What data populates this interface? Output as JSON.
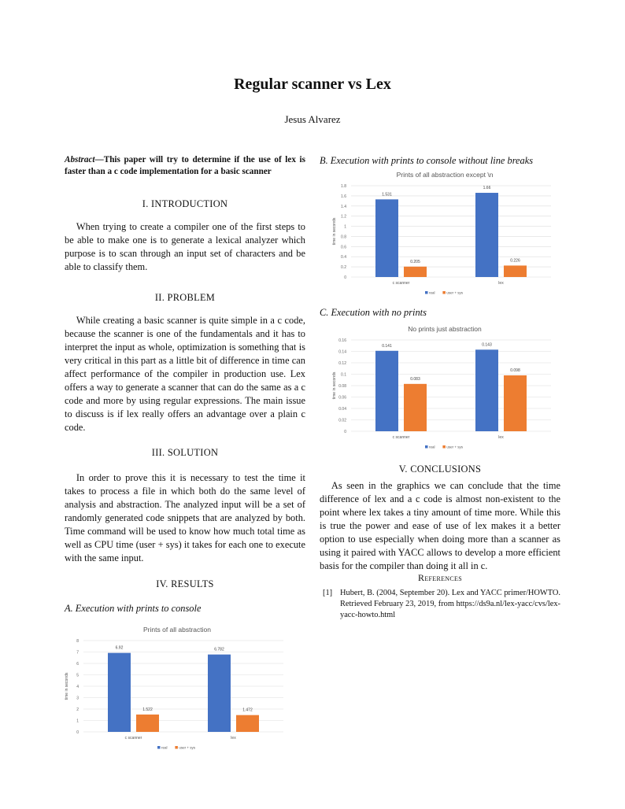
{
  "title": "Regular scanner vs Lex",
  "author": "Jesus Alvarez",
  "abstract": {
    "label": "Abstract",
    "dash": "—",
    "text": "This paper will try to determine if the use of lex is faster than a c code implementation for a basic scanner"
  },
  "sections": {
    "intro": {
      "heading": "I. INTRODUCTION",
      "text": "When trying to create a compiler one of the first steps to be able to make one is to generate a lexical analyzer which purpose is to scan through an input set of characters and be able to classify them."
    },
    "problem": {
      "heading": "II. PROBLEM",
      "text": "While creating a basic scanner is quite simple in a c code, because the scanner is one of the fundamentals and it has to interpret the input as whole, optimization is something that is very critical in this part as a little bit of difference in time can affect performance of the compiler in production use. Lex offers a way to generate a scanner that can do the same as a c code and more by using regular expressions. The main issue to discuss is if lex really offers an advantage over a plain c code."
    },
    "solution": {
      "heading": "III. SOLUTION",
      "text": "In order to prove this it is necessary to test the time it takes to process a file in which both do the same level of analysis and abstraction. The analyzed input will be a set of randomly generated code snippets that are analyzed by both. Time command will be used to know how much total time as well as CPU time (user + sys) it takes for each one to execute with the same input."
    },
    "results": {
      "heading": "IV. RESULTS",
      "sub_a": "A. Execution with prints to console",
      "sub_b": "B. Execution with prints to console without line breaks",
      "sub_c": "C. Execution with no prints"
    },
    "conclusions": {
      "heading": "V. CONCLUSIONS",
      "text": "As seen in the graphics we can conclude that the time difference of lex and a c code is almost non-existent to the point where lex takes a tiny amount of time more. While this is true the power and ease of use of lex makes it a better option to use especially when doing more than a scanner as using it paired with YACC allows to develop a more efficient basis for the compiler than doing it all in c."
    },
    "references": {
      "heading": "References",
      "items": [
        {
          "num": "[1]",
          "text": "Hubert, B. (2004, September 20). Lex and YACC primer/HOWTO. Retrieved February 23, 2019, from https://ds9a.nl/lex-yacc/cvs/lex-yacc-howto.html"
        }
      ]
    }
  },
  "chart_data": [
    {
      "type": "bar",
      "title": "Prints of all abstraction",
      "ylabel": "time in seconds",
      "xlabel": "",
      "categories": [
        "c scanner",
        "lex"
      ],
      "ylim": [
        0,
        8
      ],
      "yticks": [
        0,
        1,
        2,
        3,
        4,
        5,
        6,
        7,
        8
      ],
      "grid": true,
      "legend": "bottom",
      "series": [
        {
          "name": "real",
          "color": "#4472c4",
          "values": [
            6.92,
            6.782
          ],
          "labels": [
            "6.92",
            "6.782"
          ]
        },
        {
          "name": "user + sys",
          "color": "#ed7d31",
          "values": [
            1.522,
            1.472
          ],
          "labels": [
            "1.522",
            "1.472"
          ]
        }
      ]
    },
    {
      "type": "bar",
      "title": "Prints of all abstraction except \\n",
      "ylabel": "time in seconds",
      "xlabel": "",
      "categories": [
        "c scanner",
        "lex"
      ],
      "ylim": [
        0,
        1.8
      ],
      "yticks": [
        0,
        0.2,
        0.4,
        0.6,
        0.8,
        1,
        1.2,
        1.4,
        1.6,
        1.8
      ],
      "grid": true,
      "legend": "bottom",
      "series": [
        {
          "name": "real",
          "color": "#4472c4",
          "values": [
            1.531,
            1.66
          ],
          "labels": [
            "1.531",
            "1.66"
          ]
        },
        {
          "name": "user + sys",
          "color": "#ed7d31",
          "values": [
            0.205,
            0.226
          ],
          "labels": [
            "0.205",
            "0.226"
          ]
        }
      ]
    },
    {
      "type": "bar",
      "title": "No prints just abstraction",
      "ylabel": "time in seconds",
      "xlabel": "",
      "categories": [
        "c scanner",
        "lex"
      ],
      "ylim": [
        0,
        0.16
      ],
      "yticks": [
        0,
        0.02,
        0.04,
        0.06,
        0.08,
        0.1,
        0.12,
        0.14,
        0.16
      ],
      "grid": true,
      "legend": "bottom",
      "series": [
        {
          "name": "real",
          "color": "#4472c4",
          "values": [
            0.141,
            0.143
          ],
          "labels": [
            "0.141",
            "0.143"
          ]
        },
        {
          "name": "user + sys",
          "color": "#ed7d31",
          "values": [
            0.083,
            0.098
          ],
          "labels": [
            "0.083",
            "0.098"
          ]
        }
      ]
    }
  ]
}
